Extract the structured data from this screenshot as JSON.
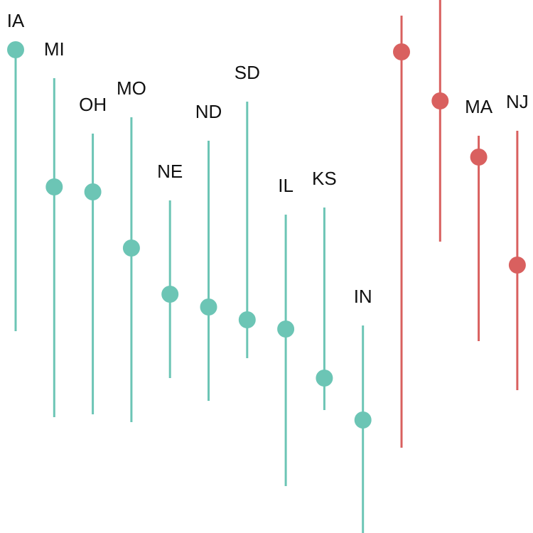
{
  "chart_data": {
    "type": "range-dot",
    "categories": [
      "IA",
      "MI",
      "OH",
      "MO",
      "NE",
      "ND",
      "SD",
      "IL",
      "KS",
      "IN",
      null,
      null,
      "MA",
      "NJ"
    ],
    "values": [
      680,
      487,
      480,
      401,
      336,
      318,
      300,
      287,
      218,
      159,
      677,
      608,
      529,
      377
    ],
    "lows": [
      284,
      163,
      167,
      156,
      218,
      186,
      246,
      66,
      173,
      0,
      120,
      410,
      270,
      201
    ],
    "highs": [
      680,
      640,
      562,
      585,
      468,
      552,
      607,
      448,
      458,
      292,
      728,
      750,
      559,
      566
    ],
    "colors": [
      "#6cc5b5",
      "#6cc5b5",
      "#6cc5b5",
      "#6cc5b5",
      "#6cc5b5",
      "#6cc5b5",
      "#6cc5b5",
      "#6cc5b5",
      "#6cc5b5",
      "#6cc5b5",
      "#d9605f",
      "#d9605f",
      "#d9605f",
      "#d9605f"
    ],
    "ylim": [
      0,
      750
    ]
  }
}
